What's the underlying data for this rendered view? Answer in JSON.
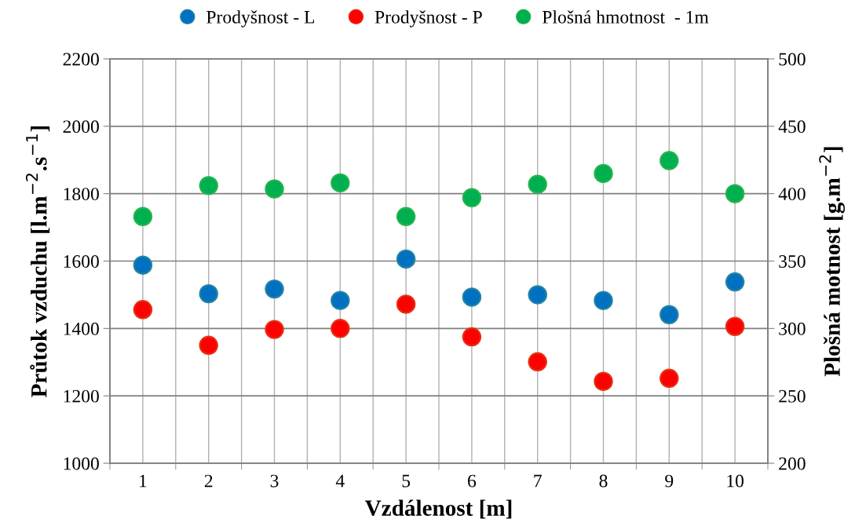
{
  "chart_data": {
    "type": "scatter",
    "xlabel": "Vzdálenost [m]",
    "ylabel": "Průtok vzduchu [l.m$^{−2}$.s$^{−1}$]",
    "y2label": "Plošná motnost [g.m$^{−2}$]",
    "categories": [
      "1",
      "2",
      "3",
      "4",
      "5",
      "6",
      "7",
      "8",
      "9",
      "10"
    ],
    "series": [
      {
        "name": "Prodyšnost - L",
        "color": "#0070c0",
        "values": [
          1588,
          1503,
          1517,
          1483,
          1606,
          1493,
          1500,
          1483,
          1441,
          1538
        ]
      },
      {
        "name": "Prodyšnost - P",
        "color": "#ff0000",
        "values": [
          1456,
          1350,
          1397,
          1400,
          1472,
          1375,
          1301,
          1243,
          1252,
          1406
        ]
      },
      {
        "name": "Plošná hmotnost  - 1m",
        "color": "#00b050",
        "axis": "y2",
        "values": [
          383,
          406,
          403.5,
          408,
          383,
          397,
          407,
          415,
          424.5,
          400
        ]
      }
    ],
    "ylim": [
      1000,
      2200
    ],
    "yticks": [
      1000,
      1200,
      1400,
      1600,
      1800,
      2000,
      2200
    ],
    "y2lim": [
      200,
      500
    ],
    "y2ticks": [
      200,
      250,
      300,
      350,
      400,
      450,
      500
    ],
    "grid": true,
    "legend": "top",
    "marker": "circle"
  }
}
